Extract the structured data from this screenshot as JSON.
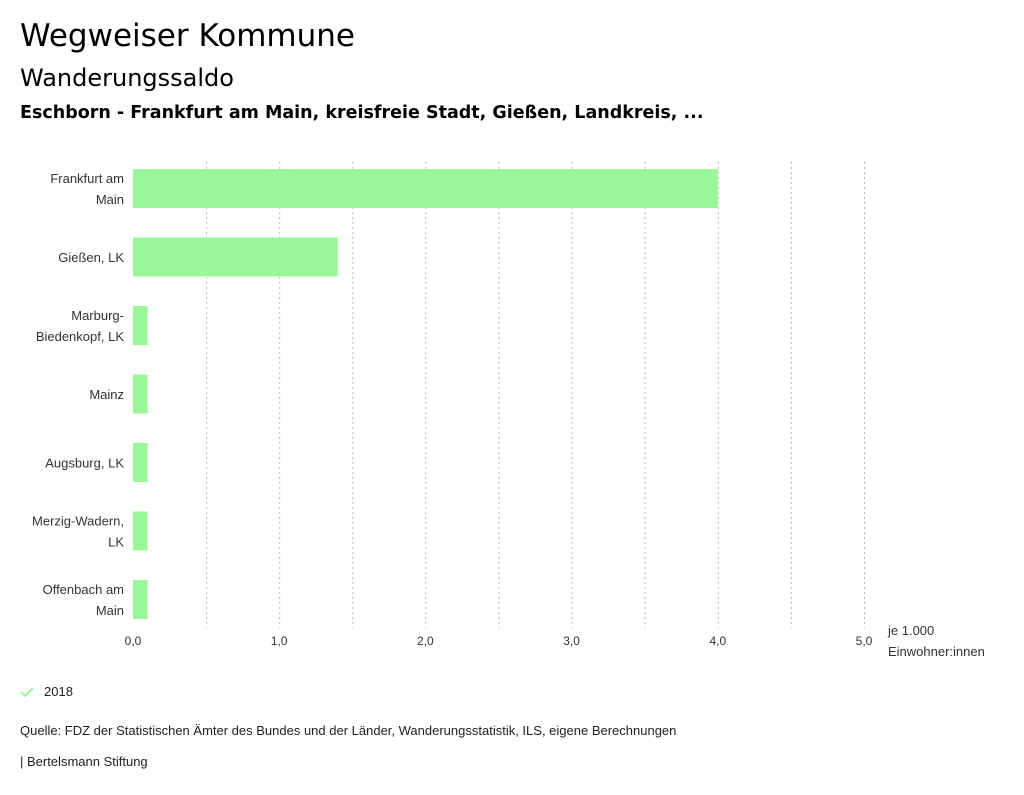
{
  "header": {
    "title": "Wegweiser Kommune",
    "subtitle": "Wanderungssaldo",
    "region": "Eschborn - Frankfurt am Main, kreisfreie Stadt, Gießen, Landkreis, ..."
  },
  "chart_data": {
    "type": "bar",
    "orientation": "horizontal",
    "categories": [
      [
        "Frankfurt am",
        "Main"
      ],
      [
        "Gießen, LK"
      ],
      [
        "Marburg-",
        "Biedenkopf, LK"
      ],
      [
        "Mainz"
      ],
      [
        "Augsburg, LK"
      ],
      [
        "Merzig-Wadern,",
        "LK"
      ],
      [
        "Offenbach am",
        "Main"
      ]
    ],
    "series": [
      {
        "name": "2018",
        "color": "#99f799",
        "values": [
          4.0,
          1.4,
          0.1,
          0.1,
          0.1,
          0.1,
          0.1
        ]
      }
    ],
    "xlim": [
      0,
      5.0
    ],
    "xticks": [
      0,
      1.0,
      2.0,
      3.0,
      4.0,
      5.0
    ],
    "xtick_labels": [
      "0,0",
      "1,0",
      "2,0",
      "3,0",
      "4,0",
      "5,0"
    ],
    "gridlines": [
      0.5,
      1.0,
      1.5,
      2.0,
      2.5,
      3.0,
      3.5,
      4.0,
      4.5,
      5.0
    ],
    "unit_label": [
      "je 1.000",
      "Einwohner:innen"
    ],
    "grid": true,
    "legend_position": "bottom-left"
  },
  "legend": {
    "label": "2018",
    "color": "#99f799",
    "icon": "check-icon"
  },
  "footer": {
    "source": "Quelle: FDZ der Statistischen Ämter des Bundes und der Länder, Wanderungsstatistik, ILS, eigene Berechnungen",
    "credit": "| Bertelsmann Stiftung"
  }
}
